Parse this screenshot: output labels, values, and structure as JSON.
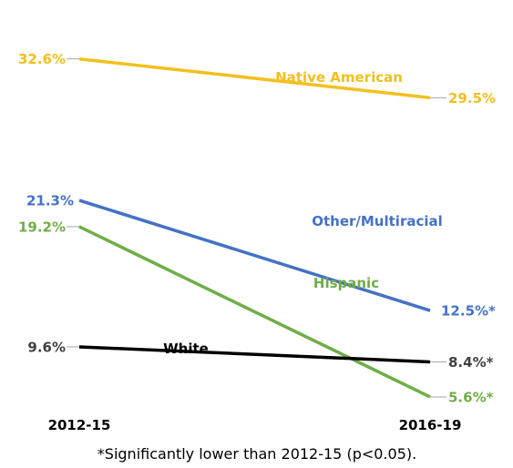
{
  "chart_data": {
    "type": "line",
    "categories": [
      "2012-15",
      "2016-19"
    ],
    "ylim": [
      0,
      35
    ],
    "grid": false,
    "legend": "inline labels",
    "footnote": "*Significantly lower than 2012-15 (p<0.05).",
    "series": [
      {
        "name": "Native American",
        "values": [
          32.6,
          29.5
        ],
        "labels": [
          "32.6%",
          "29.5%"
        ],
        "color": "#F2C01E"
      },
      {
        "name": "Other/Multiracial",
        "values": [
          21.3,
          12.5
        ],
        "labels": [
          "21.3%",
          "12.5%*"
        ],
        "color": "#4472C4"
      },
      {
        "name": "Hispanic",
        "values": [
          19.2,
          5.6
        ],
        "labels": [
          "19.2%",
          "5.6%*"
        ],
        "color": "#70AD47"
      },
      {
        "name": "White",
        "values": [
          9.6,
          8.4
        ],
        "labels": [
          "9.6%",
          "8.4%*"
        ],
        "color": "#000000",
        "label_color": "#404040"
      }
    ]
  }
}
